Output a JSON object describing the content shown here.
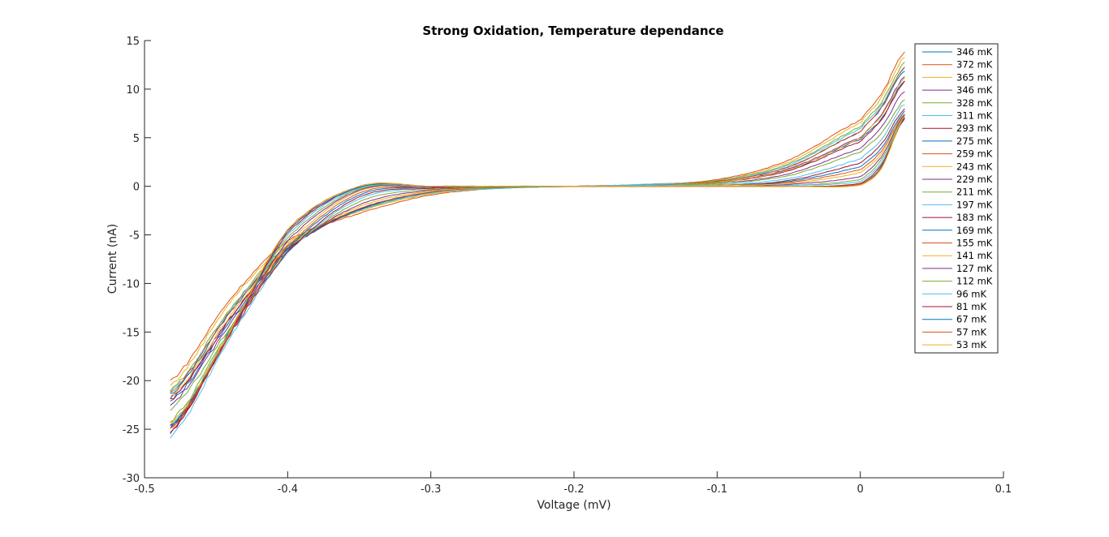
{
  "chart_data": {
    "type": "line",
    "title": "Strong Oxidation, Temperature dependance",
    "xlabel": "Voltage (mV)",
    "ylabel": "Current (nA)",
    "xlim": [
      -0.5,
      0.1
    ],
    "ylim": [
      -30,
      15
    ],
    "xticks": [
      -0.5,
      -0.4,
      -0.3,
      -0.2,
      -0.1,
      0,
      0.1
    ],
    "xtick_labels": [
      "-0.5",
      "-0.4",
      "-0.3",
      "-0.2",
      "-0.1",
      "0",
      "0.1"
    ],
    "yticks": [
      -30,
      -25,
      -20,
      -15,
      -10,
      -5,
      0,
      5,
      10,
      15
    ],
    "ytick_labels": [
      "-30",
      "-25",
      "-20",
      "-15",
      "-10",
      "-5",
      "0",
      "5",
      "10",
      "15"
    ],
    "grid": false,
    "legend_position": "top-right",
    "colors": [
      "#0072BD",
      "#D95319",
      "#EDB120",
      "#7E2F8E",
      "#77AC30",
      "#4DBEEE",
      "#A2142F"
    ],
    "series": [
      {
        "name": "346 mK",
        "temp_mK": 346,
        "color": "#0072BD",
        "x": [
          -0.482,
          -0.44,
          -0.4,
          -0.35,
          -0.3,
          -0.25,
          -0.2,
          -0.15,
          -0.1,
          -0.05,
          0,
          0.015,
          0.031
        ],
        "y": [
          -22.2,
          -13.8,
          -6.5,
          -2.4,
          -0.6,
          -0.1,
          0,
          0.1,
          0.4,
          1.7,
          4.8,
          7.0,
          10.9
        ]
      },
      {
        "name": "372 mK",
        "temp_mK": 372,
        "color": "#D95319",
        "x": [
          -0.482,
          -0.44,
          -0.4,
          -0.35,
          -0.3,
          -0.25,
          -0.2,
          -0.15,
          -0.1,
          -0.05,
          0,
          0.015,
          0.031
        ],
        "y": [
          -20.0,
          -11.6,
          -5.6,
          -2.8,
          -0.9,
          -0.2,
          0,
          0.2,
          0.7,
          2.7,
          6.8,
          9.6,
          13.8
        ]
      },
      {
        "name": "365 mK",
        "temp_mK": 365,
        "color": "#EDB120",
        "x": [
          -0.482,
          -0.44,
          -0.4,
          -0.35,
          -0.3,
          -0.25,
          -0.2,
          -0.15,
          -0.1,
          -0.05,
          0,
          0.015,
          0.031
        ],
        "y": [
          -20.5,
          -11.9,
          -5.8,
          -2.6,
          -0.8,
          -0.2,
          0,
          0.2,
          0.6,
          2.5,
          6.5,
          9.2,
          13.4
        ]
      },
      {
        "name": "346 mK",
        "temp_mK": 346,
        "color": "#7E2F8E",
        "x": [
          -0.482,
          -0.44,
          -0.4,
          -0.35,
          -0.3,
          -0.25,
          -0.2,
          -0.15,
          -0.1,
          -0.05,
          0,
          0.015,
          0.031
        ],
        "y": [
          -21.8,
          -13.5,
          -6.4,
          -2.4,
          -0.6,
          -0.1,
          0,
          0.1,
          0.4,
          1.8,
          5.0,
          7.4,
          11.3
        ]
      },
      {
        "name": "328 mK",
        "temp_mK": 328,
        "color": "#77AC30",
        "x": [
          -0.482,
          -0.44,
          -0.4,
          -0.35,
          -0.3,
          -0.25,
          -0.2,
          -0.15,
          -0.1,
          -0.05,
          0,
          0.015,
          0.031
        ],
        "y": [
          -21.0,
          -12.6,
          -6.0,
          -2.5,
          -0.7,
          -0.2,
          0,
          0.2,
          0.6,
          2.3,
          6.1,
          8.7,
          12.7
        ]
      },
      {
        "name": "311 mK",
        "temp_mK": 311,
        "color": "#4DBEEE",
        "x": [
          -0.482,
          -0.44,
          -0.4,
          -0.35,
          -0.3,
          -0.25,
          -0.2,
          -0.15,
          -0.1,
          -0.05,
          0,
          0.015,
          0.031
        ],
        "y": [
          -21.2,
          -12.8,
          -6.1,
          -2.5,
          -0.7,
          -0.2,
          0,
          0.2,
          0.5,
          2.2,
          5.9,
          8.4,
          12.3
        ]
      },
      {
        "name": "293 mK",
        "temp_mK": 293,
        "color": "#A2142F",
        "x": [
          -0.482,
          -0.44,
          -0.4,
          -0.35,
          -0.3,
          -0.25,
          -0.2,
          -0.15,
          -0.1,
          -0.05,
          0,
          0.015,
          0.031
        ],
        "y": [
          -22.0,
          -13.6,
          -6.4,
          -2.4,
          -0.6,
          -0.1,
          0,
          0.1,
          0.4,
          1.6,
          4.6,
          6.9,
          10.8
        ]
      },
      {
        "name": "275 mK",
        "temp_mK": 275,
        "color": "#0072BD",
        "x": [
          -0.482,
          -0.44,
          -0.4,
          -0.35,
          -0.3,
          -0.25,
          -0.2,
          -0.15,
          -0.1,
          -0.05,
          0,
          0.015,
          0.031
        ],
        "y": [
          -21.4,
          -13.0,
          -6.2,
          -2.4,
          -0.6,
          -0.1,
          0,
          0.1,
          0.5,
          2.0,
          5.6,
          8.1,
          12.0
        ]
      },
      {
        "name": "259 mK",
        "temp_mK": 259,
        "color": "#D95319",
        "x": [
          -0.482,
          -0.44,
          -0.4,
          -0.35,
          -0.3,
          -0.25,
          -0.2,
          -0.15,
          -0.1,
          -0.05,
          0,
          0.015,
          0.031
        ],
        "y": [
          -21.2,
          -12.9,
          -6.2,
          -2.3,
          -0.6,
          -0.1,
          0,
          0.1,
          0.5,
          2.0,
          5.6,
          8.2,
          12.3
        ]
      },
      {
        "name": "243 mK",
        "temp_mK": 243,
        "color": "#EDB120",
        "x": [
          -0.482,
          -0.44,
          -0.4,
          -0.35,
          -0.3,
          -0.25,
          -0.2,
          -0.15,
          -0.1,
          -0.05,
          0,
          0.015,
          0.031
        ],
        "y": [
          -21.6,
          -13.3,
          -6.3,
          -2.1,
          -0.5,
          -0.1,
          0,
          0.1,
          0.4,
          1.7,
          4.9,
          7.3,
          11.1
        ]
      },
      {
        "name": "229 mK",
        "temp_mK": 229,
        "color": "#7E2F8E",
        "x": [
          -0.482,
          -0.44,
          -0.4,
          -0.35,
          -0.3,
          -0.25,
          -0.2,
          -0.15,
          -0.1,
          -0.05,
          0,
          0.015,
          0.031
        ],
        "y": [
          -22.5,
          -14.1,
          -6.6,
          -1.9,
          -0.4,
          -0.1,
          0,
          0.1,
          0.3,
          1.3,
          3.9,
          6.1,
          9.8
        ]
      },
      {
        "name": "211 mK",
        "temp_mK": 211,
        "color": "#77AC30",
        "x": [
          -0.482,
          -0.44,
          -0.4,
          -0.35,
          -0.3,
          -0.25,
          -0.2,
          -0.15,
          -0.1,
          -0.05,
          0,
          0.015,
          0.031
        ],
        "y": [
          -23.0,
          -14.5,
          -6.7,
          -1.6,
          -0.3,
          -0.1,
          0,
          0.1,
          0.3,
          1.1,
          3.5,
          5.5,
          8.9
        ]
      },
      {
        "name": "197 mK",
        "temp_mK": 197,
        "color": "#4DBEEE",
        "x": [
          -0.482,
          -0.44,
          -0.4,
          -0.35,
          -0.3,
          -0.25,
          -0.2,
          -0.15,
          -0.1,
          -0.05,
          0,
          0.015,
          0.031
        ],
        "y": [
          -25.8,
          -15.5,
          -6.8,
          -1.3,
          -0.2,
          0,
          0,
          0.1,
          0.2,
          0.8,
          2.8,
          4.9,
          8.5
        ]
      },
      {
        "name": "183 mK",
        "temp_mK": 183,
        "color": "#A2142F",
        "x": [
          -0.482,
          -0.44,
          -0.4,
          -0.35,
          -0.3,
          -0.25,
          -0.2,
          -0.15,
          -0.1,
          -0.05,
          0,
          0.015,
          0.031
        ],
        "y": [
          -25.3,
          -15.2,
          -6.7,
          -1.1,
          -0.2,
          0,
          0,
          0,
          0.1,
          0.6,
          2.4,
          4.4,
          8.0
        ]
      },
      {
        "name": "169 mK",
        "temp_mK": 169,
        "color": "#0072BD",
        "x": [
          -0.482,
          -0.44,
          -0.4,
          -0.35,
          -0.3,
          -0.25,
          -0.2,
          -0.15,
          -0.1,
          -0.05,
          0,
          0.015,
          0.031
        ],
        "y": [
          -24.8,
          -15.0,
          -6.4,
          -0.9,
          -0.1,
          0,
          0,
          0,
          0.1,
          0.5,
          2.0,
          4.0,
          7.7
        ]
      },
      {
        "name": "155 mK",
        "temp_mK": 155,
        "color": "#D95319",
        "x": [
          -0.482,
          -0.44,
          -0.4,
          -0.35,
          -0.3,
          -0.25,
          -0.2,
          -0.15,
          -0.1,
          -0.05,
          0,
          0.015,
          0.031
        ],
        "y": [
          -25.0,
          -15.1,
          -6.2,
          -0.7,
          -0.1,
          0,
          0,
          0,
          0.1,
          0.4,
          1.7,
          3.7,
          7.5
        ]
      },
      {
        "name": "141 mK",
        "temp_mK": 141,
        "color": "#EDB120",
        "x": [
          -0.482,
          -0.44,
          -0.4,
          -0.35,
          -0.3,
          -0.25,
          -0.2,
          -0.15,
          -0.1,
          -0.05,
          0,
          0.015,
          0.031
        ],
        "y": [
          -24.6,
          -14.9,
          -5.9,
          -0.5,
          -0.1,
          0,
          0,
          0,
          0.1,
          0.3,
          1.4,
          3.4,
          7.4
        ]
      },
      {
        "name": "127 mK",
        "temp_mK": 127,
        "color": "#7E2F8E",
        "x": [
          -0.482,
          -0.44,
          -0.4,
          -0.35,
          -0.3,
          -0.25,
          -0.2,
          -0.15,
          -0.1,
          -0.05,
          0,
          0.015,
          0.031
        ],
        "y": [
          -24.9,
          -15.0,
          -5.6,
          -0.4,
          -0.1,
          0,
          0,
          0,
          0,
          0.2,
          1.0,
          3.1,
          7.3
        ]
      },
      {
        "name": "112 mK",
        "temp_mK": 112,
        "color": "#77AC30",
        "x": [
          -0.482,
          -0.44,
          -0.4,
          -0.35,
          -0.3,
          -0.25,
          -0.2,
          -0.15,
          -0.1,
          -0.05,
          0,
          0.015,
          0.031
        ],
        "y": [
          -24.2,
          -14.7,
          -5.3,
          -0.3,
          0,
          0,
          0,
          0,
          0,
          0.1,
          0.7,
          2.8,
          7.1
        ]
      },
      {
        "name": "96 mK",
        "temp_mK": 96,
        "color": "#4DBEEE",
        "x": [
          -0.482,
          -0.44,
          -0.4,
          -0.35,
          -0.3,
          -0.25,
          -0.2,
          -0.15,
          -0.1,
          -0.05,
          0,
          0.015,
          0.031
        ],
        "y": [
          -24.5,
          -14.8,
          -5.0,
          -0.2,
          0,
          0,
          0,
          0,
          0,
          0.1,
          0.5,
          2.5,
          7.0
        ]
      },
      {
        "name": "81 mK",
        "temp_mK": 81,
        "color": "#A2142F",
        "x": [
          -0.482,
          -0.44,
          -0.4,
          -0.35,
          -0.3,
          -0.25,
          -0.2,
          -0.15,
          -0.1,
          -0.05,
          0,
          0.015,
          0.031
        ],
        "y": [
          -25.2,
          -15.0,
          -4.8,
          -0.1,
          0,
          0,
          0,
          0,
          0,
          0,
          0.3,
          2.3,
          7.0
        ]
      },
      {
        "name": "67 mK",
        "temp_mK": 67,
        "color": "#0072BD",
        "x": [
          -0.482,
          -0.44,
          -0.4,
          -0.35,
          -0.3,
          -0.25,
          -0.2,
          -0.15,
          -0.1,
          -0.05,
          0,
          0.015,
          0.031
        ],
        "y": [
          -24.7,
          -14.9,
          -4.6,
          -0.1,
          0,
          0,
          0,
          0,
          0,
          0,
          0.2,
          2.1,
          7.1
        ]
      },
      {
        "name": "57 mK",
        "temp_mK": 57,
        "color": "#D95319",
        "x": [
          -0.482,
          -0.44,
          -0.4,
          -0.35,
          -0.3,
          -0.25,
          -0.2,
          -0.15,
          -0.1,
          -0.05,
          0,
          0.015,
          0.031
        ],
        "y": [
          -25.0,
          -15.0,
          -4.5,
          0,
          0,
          0,
          0,
          0,
          0,
          0,
          0.2,
          2.0,
          7.2
        ]
      },
      {
        "name": "53 mK",
        "temp_mK": 53,
        "color": "#EDB120",
        "x": [
          -0.482,
          -0.44,
          -0.4,
          -0.35,
          -0.3,
          -0.25,
          -0.2,
          -0.15,
          -0.1,
          -0.05,
          0,
          0.015,
          0.031
        ],
        "y": [
          -24.4,
          -14.8,
          -4.4,
          0,
          0,
          0,
          0,
          0,
          0,
          0,
          0.1,
          1.9,
          7.3
        ]
      }
    ]
  }
}
